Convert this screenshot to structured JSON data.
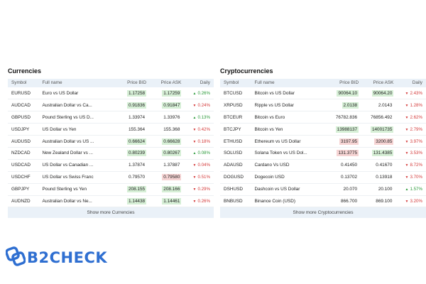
{
  "currencies": {
    "title": "Currencies",
    "columns": [
      "Symbol",
      "Full name",
      "Price BID",
      "Price ASK",
      "Daily"
    ],
    "rows": [
      {
        "symbol": "EURUSD",
        "name": "Euro vs US Dollar",
        "bid": "1.17258",
        "ask": "1.17259",
        "daily": "0.26%",
        "dir": "up",
        "bid_hl": "up",
        "ask_hl": "up"
      },
      {
        "symbol": "AUDCAD",
        "name": "Australian Dollar vs Ca...",
        "bid": "0.91836",
        "ask": "0.91847",
        "daily": "0.24%",
        "dir": "down",
        "bid_hl": "up",
        "ask_hl": "up"
      },
      {
        "symbol": "GBPUSD",
        "name": "Pound Sterling vs US D...",
        "bid": "1.33974",
        "ask": "1.33976",
        "daily": "0.13%",
        "dir": "up",
        "bid_hl": "",
        "ask_hl": ""
      },
      {
        "symbol": "USDJPY",
        "name": "US Dollar vs Yen",
        "bid": "155.364",
        "ask": "155.368",
        "daily": "0.42%",
        "dir": "down",
        "bid_hl": "",
        "ask_hl": ""
      },
      {
        "symbol": "AUDUSD",
        "name": "Australian Dollar vs US ...",
        "bid": "0.66624",
        "ask": "0.66628",
        "daily": "0.18%",
        "dir": "down",
        "bid_hl": "up",
        "ask_hl": "up"
      },
      {
        "symbol": "NZDCAD",
        "name": "New Zealand Dollar vs ...",
        "bid": "0.80239",
        "ask": "0.80267",
        "daily": "0.08%",
        "dir": "up",
        "bid_hl": "up",
        "ask_hl": "up"
      },
      {
        "symbol": "USDCAD",
        "name": "US Dollar vs Canadian ...",
        "bid": "1.37874",
        "ask": "1.37887",
        "daily": "0.04%",
        "dir": "down",
        "bid_hl": "",
        "ask_hl": ""
      },
      {
        "symbol": "USDCHF",
        "name": "US Dollar vs Swiss Franc",
        "bid": "0.79570",
        "ask": "0.79580",
        "daily": "0.51%",
        "dir": "down",
        "bid_hl": "",
        "ask_hl": "down"
      },
      {
        "symbol": "GBPJPY",
        "name": "Pound Sterling vs Yen",
        "bid": "208.155",
        "ask": "208.166",
        "daily": "0.29%",
        "dir": "down",
        "bid_hl": "up",
        "ask_hl": "up"
      },
      {
        "symbol": "AUDNZD",
        "name": "Australian Dollar vs Ne...",
        "bid": "1.14438",
        "ask": "1.14461",
        "daily": "0.26%",
        "dir": "down",
        "bid_hl": "up",
        "ask_hl": "up"
      }
    ],
    "more_label": "Show more Currencies"
  },
  "crypto": {
    "title": "Cryptocurrencies",
    "columns": [
      "Symbol",
      "Full name",
      "Price BID",
      "Price ASK",
      "Daily"
    ],
    "rows": [
      {
        "symbol": "BTCUSD",
        "name": "Bitcoin vs US Dollar",
        "bid": "90064.10",
        "ask": "90064.20",
        "daily": "2.43%",
        "dir": "down",
        "bid_hl": "up",
        "ask_hl": "up"
      },
      {
        "symbol": "XRPUSD",
        "name": "Ripple vs US Dollar",
        "bid": "2.0138",
        "ask": "2.0143",
        "daily": "1.28%",
        "dir": "down",
        "bid_hl": "up",
        "ask_hl": ""
      },
      {
        "symbol": "BTCEUR",
        "name": "Bitcoin vs Euro",
        "bid": "76782.836",
        "ask": "76856.492",
        "daily": "2.62%",
        "dir": "down",
        "bid_hl": "",
        "ask_hl": ""
      },
      {
        "symbol": "BTCJPY",
        "name": "Bitcoin vs Yen",
        "bid": "13988137",
        "ask": "14001735",
        "daily": "2.79%",
        "dir": "down",
        "bid_hl": "up",
        "ask_hl": "up"
      },
      {
        "symbol": "ETHUSD",
        "name": "Ethereum vs US Dollar",
        "bid": "3197.95",
        "ask": "3200.85",
        "daily": "3.97%",
        "dir": "down",
        "bid_hl": "down",
        "ask_hl": "down"
      },
      {
        "symbol": "SOLUSD",
        "name": "Solana Token vs US Dol...",
        "bid": "131.3775",
        "ask": "131.4385",
        "daily": "3.53%",
        "dir": "down",
        "bid_hl": "down",
        "ask_hl": "up"
      },
      {
        "symbol": "ADAUSD",
        "name": "Cardano Vs USD",
        "bid": "0.41450",
        "ask": "0.41670",
        "daily": "8.72%",
        "dir": "down",
        "bid_hl": "",
        "ask_hl": ""
      },
      {
        "symbol": "DOGUSD",
        "name": "Dogecoin USD",
        "bid": "0.13702",
        "ask": "0.13918",
        "daily": "3.70%",
        "dir": "down",
        "bid_hl": "",
        "ask_hl": ""
      },
      {
        "symbol": "DSHUSD",
        "name": "Dashcoin vs US Dollar",
        "bid": "20.070",
        "ask": "20.100",
        "daily": "1.57%",
        "dir": "up",
        "bid_hl": "",
        "ask_hl": ""
      },
      {
        "symbol": "BNBUSD",
        "name": "Binance Coin (USD)",
        "bid": "866.700",
        "ask": "869.100",
        "daily": "3.20%",
        "dir": "down",
        "bid_hl": "",
        "ask_hl": ""
      }
    ],
    "more_label": "Show more Cryptocurrencies"
  },
  "logo": {
    "text": "B2CHECK",
    "icon": "link-icon",
    "color": "#2f6fd1"
  },
  "colors": {
    "up": "#2b9a3a",
    "down": "#d43a3a",
    "header_bg": "#eaf1f8"
  }
}
